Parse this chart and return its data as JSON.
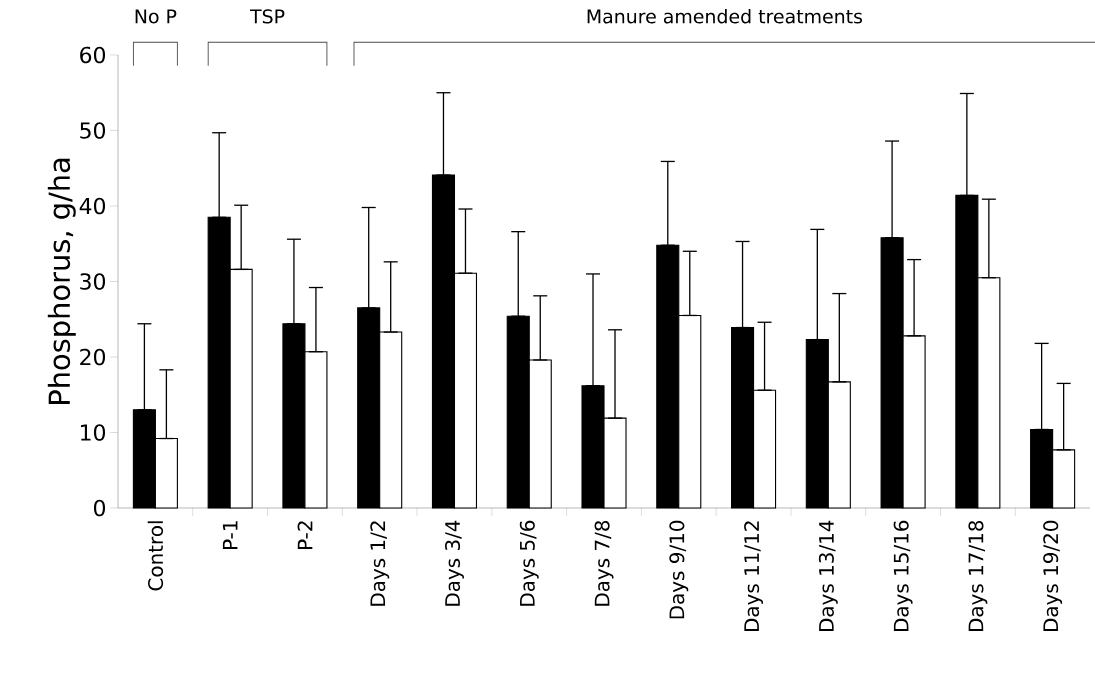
{
  "chart_data": {
    "type": "bar",
    "ylabel": "Phosphorus, g/ha",
    "categories": [
      "Control",
      "P-1",
      "P-2",
      "Days 1/2",
      "Days 3/4",
      "Days 5/6",
      "Days 7/8",
      "Days 9/10",
      "Days 11/12",
      "Days 13/14",
      "Days 15/16",
      "Days 17/18",
      "Days 19/20"
    ],
    "series": [
      {
        "color": "#000000",
        "values": [
          13,
          38.5,
          24.4,
          26.5,
          44.1,
          25.4,
          16.2,
          34.8,
          23.9,
          22.3,
          35.8,
          41.4,
          10.4
        ],
        "errors": [
          [
            13,
            24.4
          ],
          [
            38.5,
            49.7
          ],
          [
            24.4,
            35.6
          ],
          [
            26.5,
            39.8
          ],
          [
            44.1,
            55
          ],
          [
            25.4,
            36.6
          ],
          [
            16.2,
            31
          ],
          [
            34.8,
            45.9
          ],
          [
            23.9,
            35.3
          ],
          [
            22.3,
            36.9
          ],
          [
            35.8,
            48.6
          ],
          [
            41.4,
            54.9
          ],
          [
            10.4,
            21.8
          ]
        ]
      },
      {
        "color": "#ffffff",
        "values": [
          9.2,
          31.6,
          20.7,
          23.3,
          31.1,
          19.6,
          11.9,
          25.5,
          15.6,
          16.7,
          22.8,
          30.5,
          7.7
        ],
        "errors": [
          [
            9.2,
            18.3
          ],
          [
            31.6,
            40.1
          ],
          [
            20.7,
            29.2
          ],
          [
            23.3,
            32.6
          ],
          [
            31.1,
            39.6
          ],
          [
            19.6,
            28.1
          ],
          [
            11.9,
            23.6
          ],
          [
            25.5,
            34
          ],
          [
            15.6,
            24.6
          ],
          [
            16.7,
            28.4
          ],
          [
            22.8,
            32.9
          ],
          [
            30.5,
            40.9
          ],
          [
            7.7,
            16.5
          ]
        ]
      }
    ],
    "ylim": [
      0,
      60
    ],
    "yticks": [
      0,
      10,
      20,
      30,
      40,
      50,
      60
    ],
    "annotations": [
      "No P",
      "TSP",
      "Manure amended treatments"
    ]
  }
}
